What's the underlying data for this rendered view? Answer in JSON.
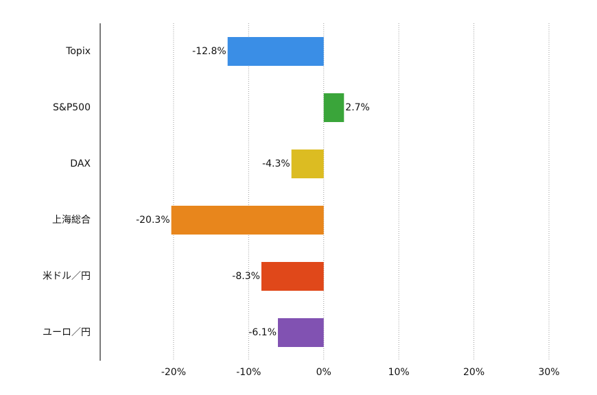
{
  "chart_data": {
    "type": "hbar",
    "categories": [
      "Topix",
      "S&P500",
      "DAX",
      "上海総合",
      "米ドル／円",
      "ユーロ／円"
    ],
    "values": [
      -12.8,
      2.7,
      -4.3,
      -20.3,
      -8.3,
      -6.1
    ],
    "value_labels": [
      "-12.8%",
      "2.7%",
      "-4.3%",
      "-20.3%",
      "-8.3%",
      "-6.1%"
    ],
    "colors": [
      "#3a8ee6",
      "#3aa53a",
      "#dcbc22",
      "#e8861c",
      "#e0481a",
      "#8152b2"
    ],
    "xlim": [
      -30,
      30
    ],
    "xticks": [
      {
        "value": -20,
        "label": "-20%"
      },
      {
        "value": -10,
        "label": "-10%"
      },
      {
        "value": 0,
        "label": "0%"
      },
      {
        "value": 10,
        "label": "10%"
      },
      {
        "value": 20,
        "label": "20%"
      },
      {
        "value": 30,
        "label": "30%"
      }
    ],
    "grid": true
  }
}
